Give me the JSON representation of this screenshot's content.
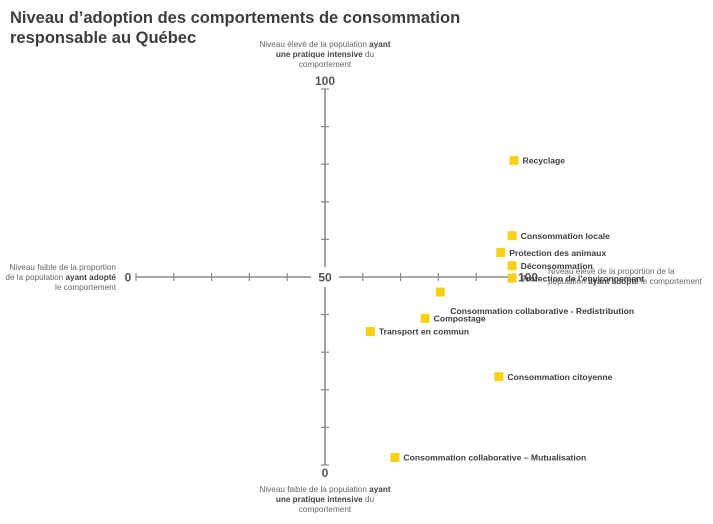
{
  "chart_data": {
    "type": "scatter",
    "title": "Niveau d’adoption des comportements de consommation responsable au Québec",
    "x_axis": {
      "range": [
        0,
        100
      ],
      "origin_label": "0",
      "center_label": "50",
      "max_label": "100",
      "low_label": {
        "pre": "Niveau faible de la proportion de la population ",
        "bold": "ayant adopté",
        "post": " le comportement"
      },
      "high_label": {
        "pre": "Niveau élevé de la proportion de la population ",
        "bold": "ayant adopté",
        "post": " le comportement"
      }
    },
    "y_axis": {
      "range": [
        0,
        100
      ],
      "origin_label": "0",
      "max_label": "100",
      "high_label": {
        "pre": "Niveau élevé de la population ",
        "bold": "ayant une pratique intensive",
        "post": " du comportement"
      },
      "low_label": {
        "pre": "Niveau faible de la population ",
        "bold": "ayant une pratique intensive",
        "post": " du comportement"
      }
    },
    "marker_color": "#f7d117",
    "points": [
      {
        "label": "Recyclage",
        "x": 100,
        "y": 81,
        "label_side": "right"
      },
      {
        "label": "Consommation locale",
        "x": 99.5,
        "y": 61,
        "label_side": "right"
      },
      {
        "label": "Protection des animaux",
        "x": 96.5,
        "y": 56.5,
        "label_side": "right"
      },
      {
        "label": "Déconsommation",
        "x": 99.5,
        "y": 53,
        "label_side": "right"
      },
      {
        "label": "Protection de l’environnement",
        "x": 99.5,
        "y": 49.7,
        "label_side": "right"
      },
      {
        "label": "Consommation collaborative - Redistribution",
        "x": 80.5,
        "y": 46,
        "label_side": "below"
      },
      {
        "label": "Compostage",
        "x": 76.5,
        "y": 39,
        "label_side": "right"
      },
      {
        "label": "Transport en commun",
        "x": 62,
        "y": 35.5,
        "label_side": "right"
      },
      {
        "label": "Consommation citoyenne",
        "x": 96,
        "y": 23.5,
        "label_side": "right"
      },
      {
        "label": "Consommation collaborative – Mutualisation",
        "x": 68.5,
        "y": 2,
        "label_side": "right"
      }
    ]
  }
}
